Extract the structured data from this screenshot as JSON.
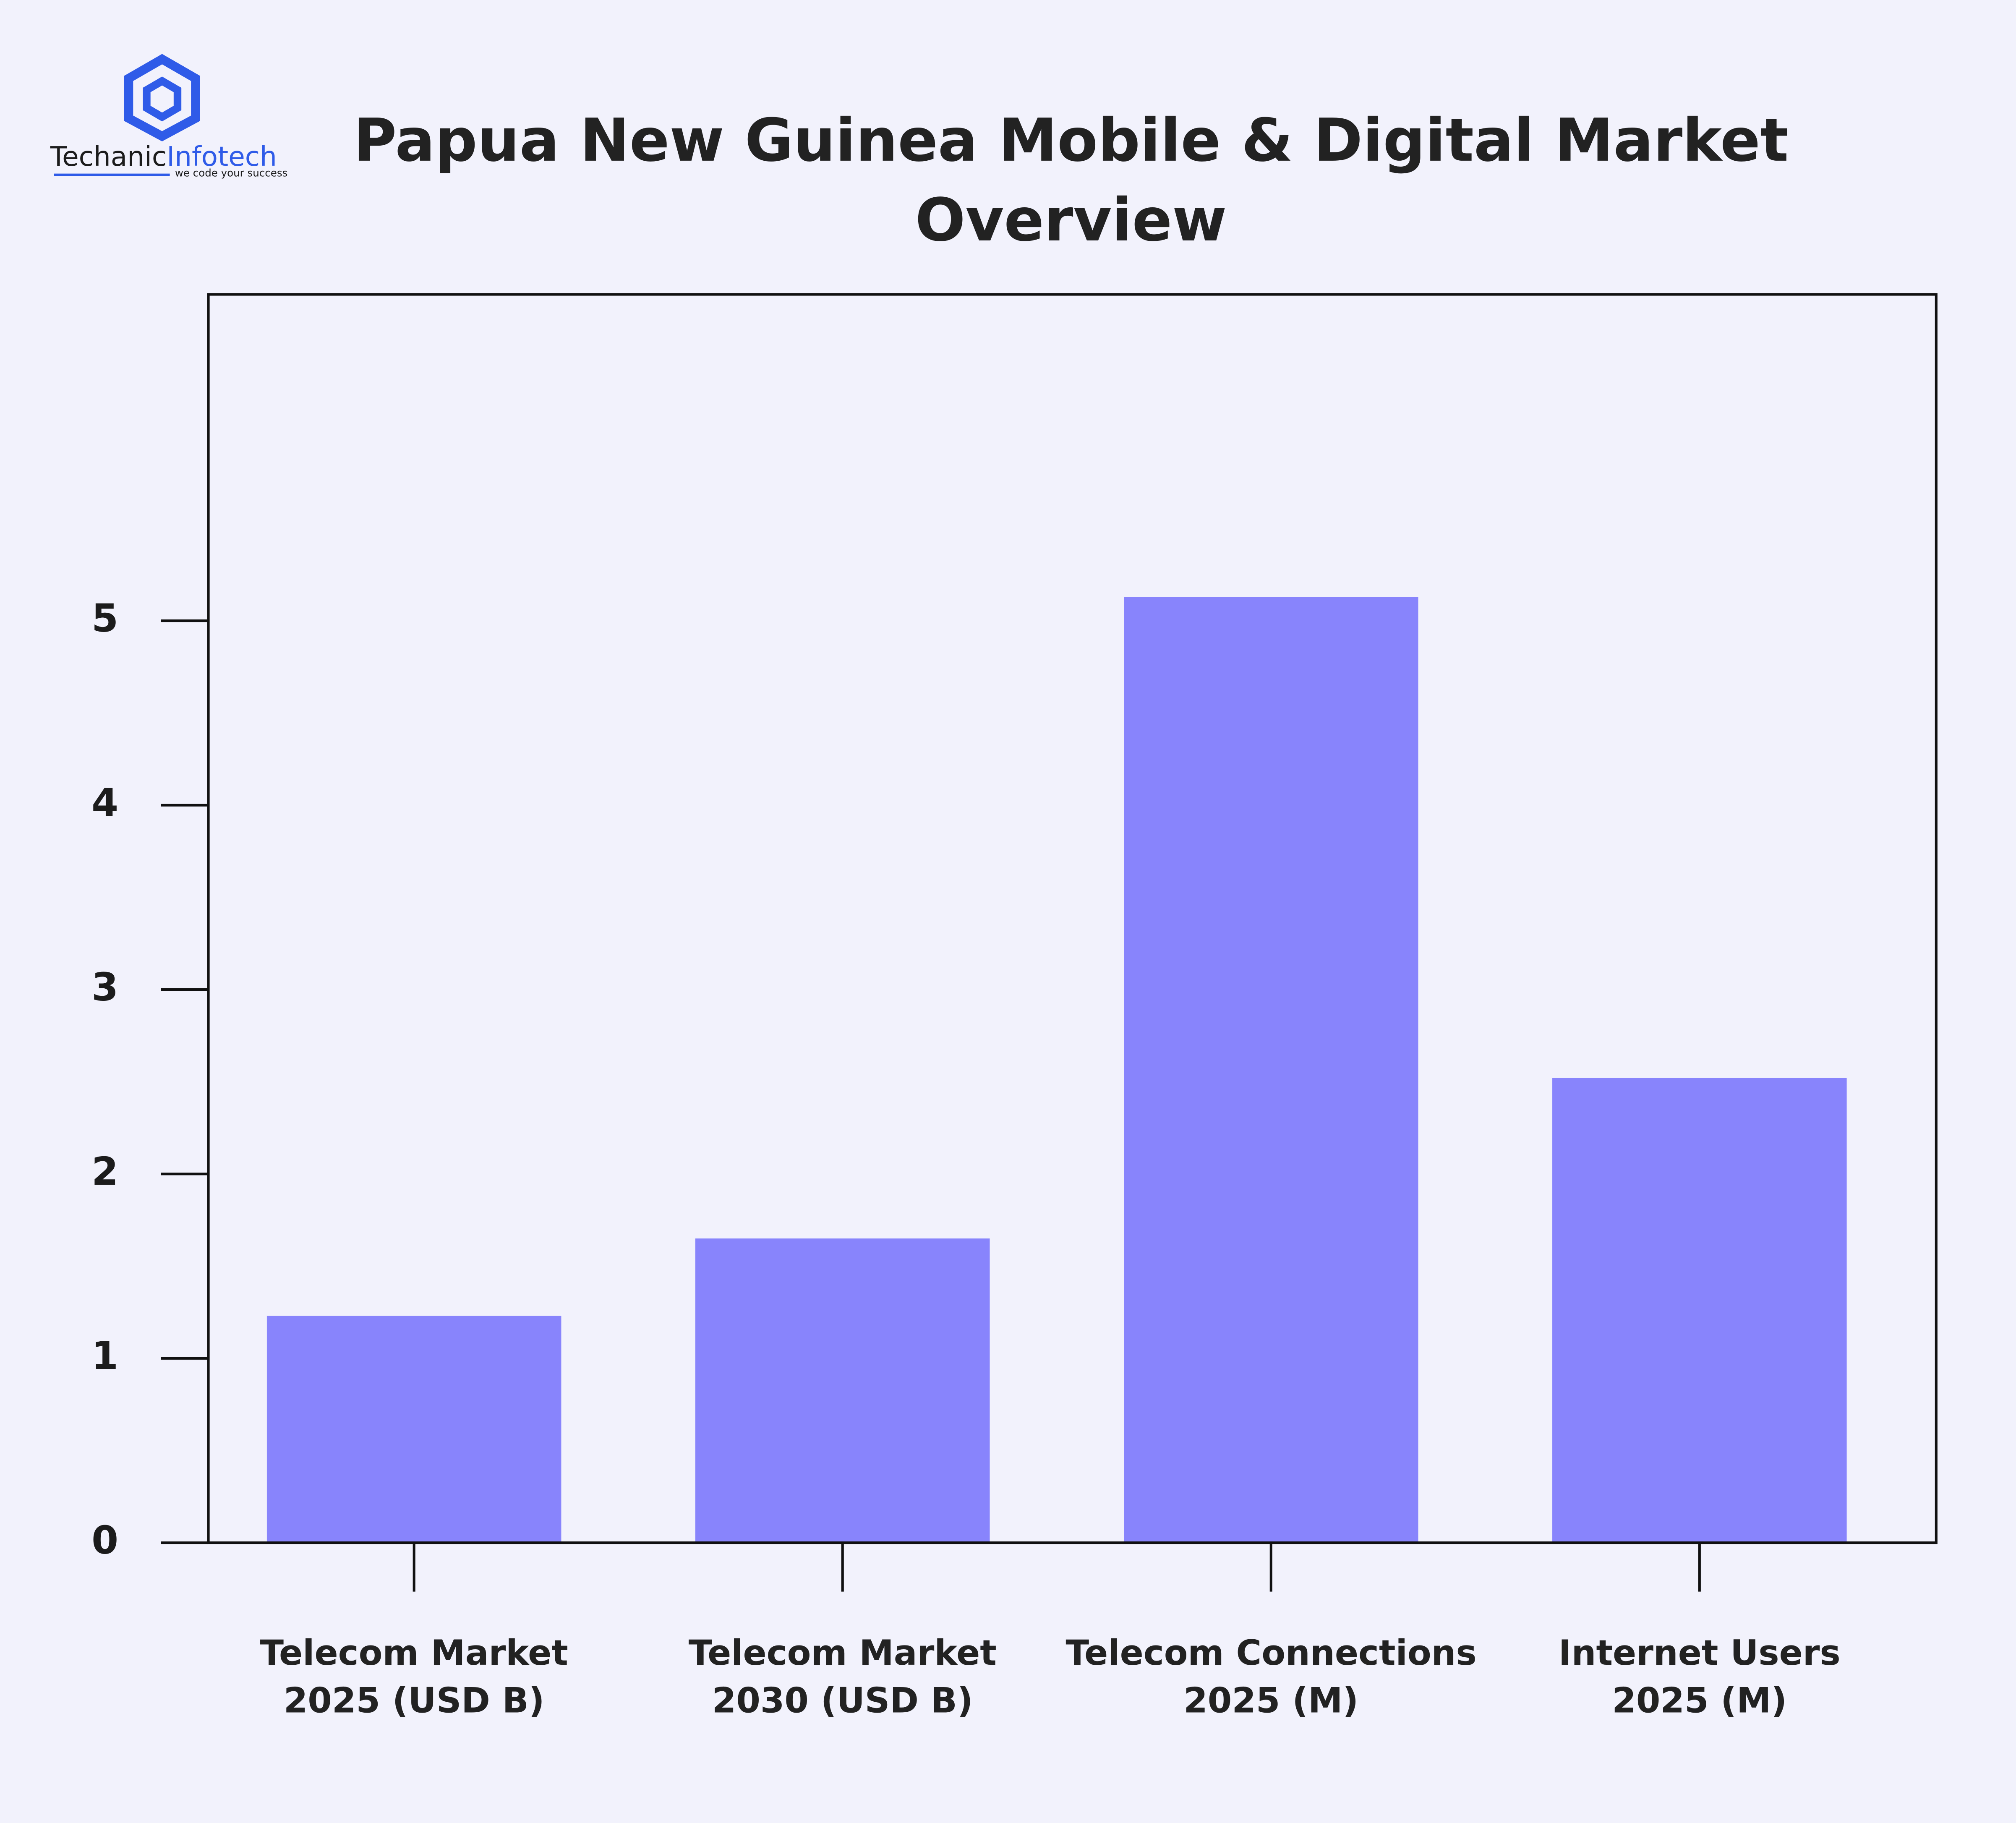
{
  "logo": {
    "name_dark": "Techanic",
    "name_light": "Infotech",
    "tagline": "we code your success"
  },
  "chart_data": {
    "type": "bar",
    "title": "Papua New Guinea Mobile & Digital Market\nOverview",
    "categories": [
      "Telecom Market\n2025 (USD B)",
      "Telecom Market\n2030 (USD B)",
      "Telecom Connections\n2025 (M)",
      "Internet Users\n2025 (M)"
    ],
    "values": [
      1.23,
      1.65,
      5.13,
      2.52
    ],
    "color": "#8884fc",
    "ylim": [
      0,
      6.77
    ],
    "yticks": [
      0,
      1,
      2,
      3,
      4,
      5
    ],
    "grid": false
  }
}
